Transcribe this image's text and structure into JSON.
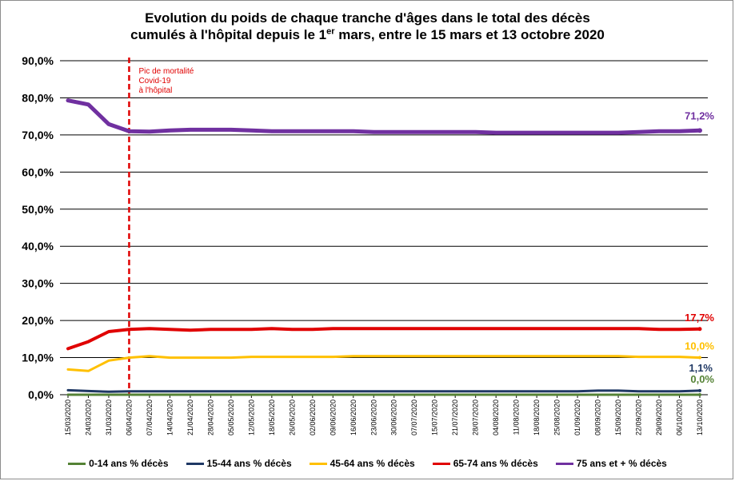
{
  "title_line1": "Evolution du poids de chaque tranche d'âges dans le total des décès",
  "title_line2_pre": "cumulés à l'hôpital depuis le 1",
  "title_line2_sup": "er",
  "title_line2_post": " mars, entre le 15 mars et 13 octobre 2020",
  "chart_data": {
    "type": "line",
    "ylim": [
      0,
      90
    ],
    "ytick_labels": [
      "0,0%",
      "10,0%",
      "20,0%",
      "30,0%",
      "40,0%",
      "50,0%",
      "60,0%",
      "70,0%",
      "80,0%",
      "90,0%"
    ],
    "grid": "horizontal",
    "legend": "bottom",
    "x": [
      "15/03/2020",
      "24/03/2020",
      "31/03/2020",
      "06/04/2020",
      "07/04/2020",
      "14/04/2020",
      "21/04/2020",
      "28/04/2020",
      "05/05/2020",
      "12/05/2020",
      "18/05/2020",
      "26/05/2020",
      "02/06/2020",
      "09/06/2020",
      "16/06/2020",
      "23/06/2020",
      "30/06/2020",
      "07/07/2020",
      "15/07/2020",
      "21/07/2020",
      "28/07/2020",
      "04/08/2020",
      "11/08/2020",
      "18/08/2020",
      "25/08/2020",
      "01/09/2020",
      "08/09/2020",
      "15/09/2020",
      "22/09/2020",
      "29/09/2020",
      "06/10/2020",
      "13/10/2020"
    ],
    "highlight_x": "06/04/2020",
    "highlight_color": "#e00000",
    "annotation": [
      "Pic de mortalité",
      "Covid-19",
      "à l'hôpital"
    ],
    "series": [
      {
        "name": "0-14 ans % décès",
        "color": "#548235",
        "width": 3,
        "values": [
          0.0,
          0.0,
          0.0,
          0.0,
          0.0,
          0.0,
          0.0,
          0.0,
          0.0,
          0.0,
          0.0,
          0.0,
          0.0,
          0.0,
          0.0,
          0.0,
          0.0,
          0.0,
          0.0,
          0.0,
          0.0,
          0.0,
          0.0,
          0.0,
          0.0,
          0.0,
          0.0,
          0.0,
          0.0,
          0.0,
          0.0,
          0.0
        ],
        "end_label": "0,0%"
      },
      {
        "name": "15-44 ans % décès",
        "color": "#1f3864",
        "width": 3,
        "values": [
          1.2,
          1.0,
          0.8,
          0.9,
          0.9,
          0.9,
          0.9,
          0.9,
          0.9,
          0.9,
          0.9,
          0.9,
          0.9,
          0.9,
          0.9,
          0.9,
          0.9,
          0.9,
          0.9,
          0.9,
          0.9,
          0.9,
          0.9,
          0.9,
          0.9,
          0.9,
          1.1,
          1.1,
          0.9,
          0.9,
          0.9,
          1.1
        ],
        "end_label": "1,1%"
      },
      {
        "name": "45-64 ans % décès",
        "color": "#ffc000",
        "width": 3,
        "values": [
          6.8,
          6.4,
          9.2,
          10.0,
          10.4,
          10.0,
          10.0,
          10.0,
          10.0,
          10.2,
          10.2,
          10.2,
          10.2,
          10.2,
          10.4,
          10.4,
          10.4,
          10.4,
          10.4,
          10.4,
          10.4,
          10.4,
          10.4,
          10.4,
          10.4,
          10.4,
          10.4,
          10.4,
          10.2,
          10.2,
          10.2,
          10.0
        ],
        "end_label": "10,0%"
      },
      {
        "name": "65-74 ans % décès",
        "color": "#e00000",
        "width": 4,
        "values": [
          12.4,
          14.3,
          17.0,
          17.6,
          17.8,
          17.6,
          17.4,
          17.6,
          17.6,
          17.6,
          17.8,
          17.6,
          17.6,
          17.8,
          17.8,
          17.8,
          17.8,
          17.8,
          17.8,
          17.8,
          17.8,
          17.8,
          17.8,
          17.8,
          17.8,
          17.8,
          17.8,
          17.8,
          17.8,
          17.6,
          17.6,
          17.7
        ],
        "end_label": "17,7%"
      },
      {
        "name": "75 ans et + % décès",
        "color": "#7030a0",
        "width": 5,
        "values": [
          79.3,
          78.2,
          72.9,
          71.0,
          70.9,
          71.2,
          71.4,
          71.4,
          71.4,
          71.2,
          71.0,
          71.0,
          71.0,
          71.0,
          71.0,
          70.8,
          70.8,
          70.8,
          70.8,
          70.8,
          70.8,
          70.6,
          70.6,
          70.6,
          70.6,
          70.6,
          70.6,
          70.6,
          70.8,
          71.0,
          71.0,
          71.2
        ],
        "end_label": "71,2%"
      }
    ]
  }
}
